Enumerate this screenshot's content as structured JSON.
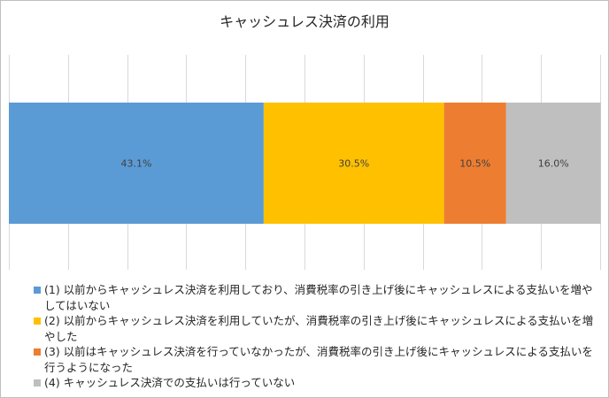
{
  "chart_data": {
    "type": "bar",
    "orientation": "horizontal",
    "stacked": true,
    "title": "キャッシュレス決済の利用",
    "categories": [
      ""
    ],
    "xlim": [
      0,
      100
    ],
    "grid": true,
    "legend_position": "bottom",
    "series": [
      {
        "name": "(1) 以前からキャッシュレス決済を利用しており、消費税率の引き上げ後にキャッシュレスによる支払いを増やしてはいない",
        "values": [
          43.1
        ],
        "label": "43.1%",
        "color": "#5b9bd5"
      },
      {
        "name": "(2) 以前からキャッシュレス決済を利用していたが、消費税率の引き上げ後にキャッシュレスによる支払いを増やした",
        "values": [
          30.5
        ],
        "label": "30.5%",
        "color": "#ffc000"
      },
      {
        "name": "(3) 以前はキャッシュレス決済を行っていなかったが、消費税率の引き上げ後にキャッシュレスによる支払いを行うようになった",
        "values": [
          10.5
        ],
        "label": "10.5%",
        "color": "#ed7d31"
      },
      {
        "name": "(4) キャッシュレス決済での支払いは行っていない",
        "values": [
          16.0
        ],
        "label": "16.0%",
        "color": "#bfbfbf"
      }
    ]
  }
}
